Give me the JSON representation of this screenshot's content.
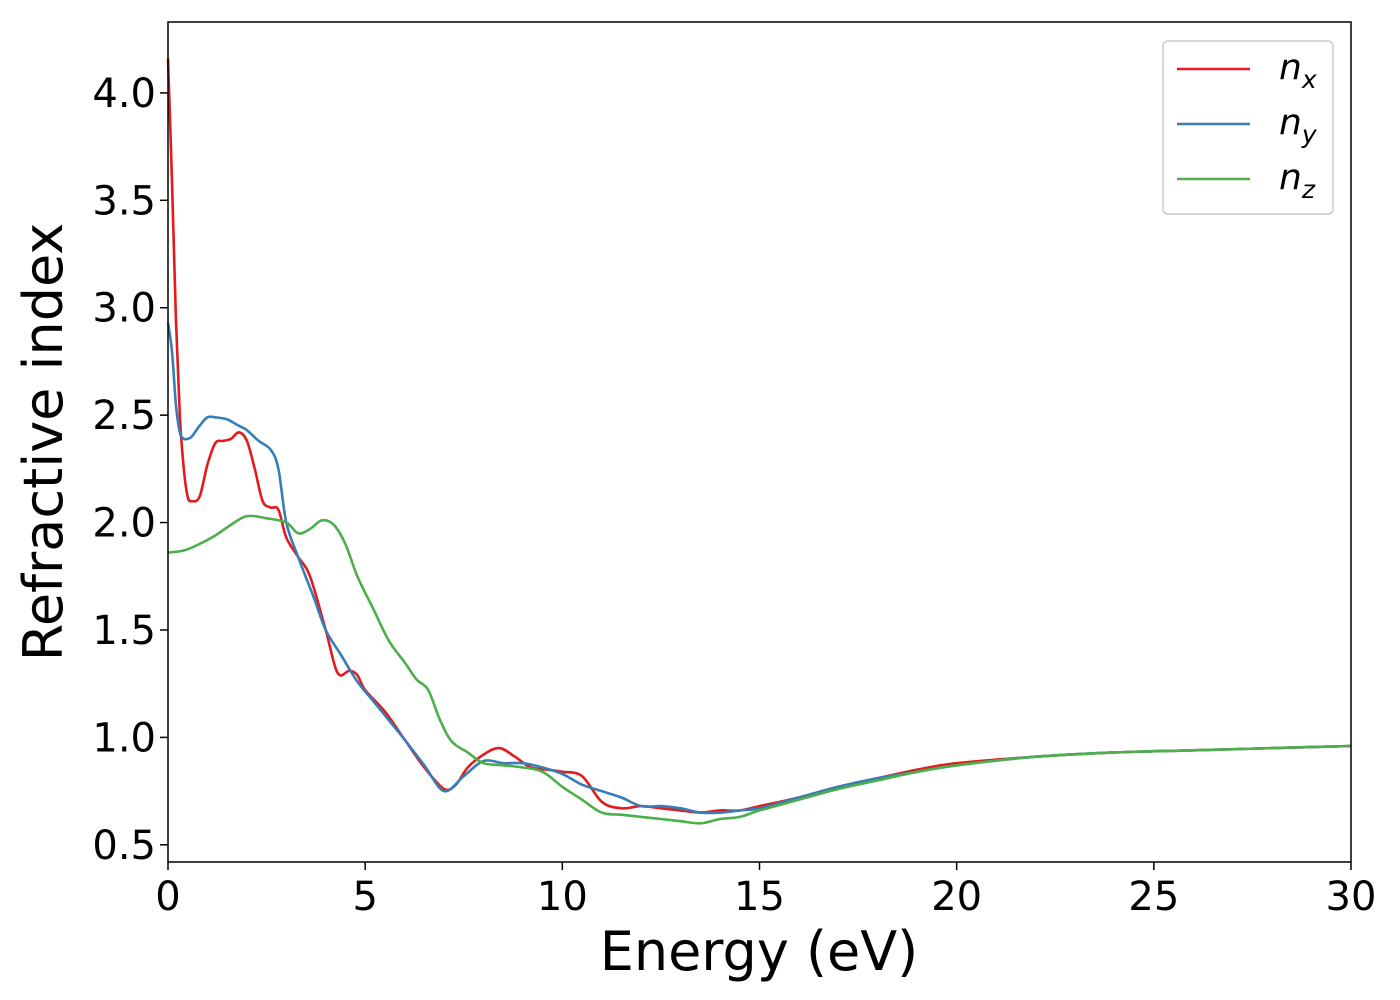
{
  "chart_data": {
    "type": "line",
    "title": "",
    "xlabel": "Energy (eV)",
    "ylabel": "Refractive index",
    "xlim": [
      0,
      30
    ],
    "ylim": [
      0.42,
      4.33
    ],
    "xticks": [
      0,
      5,
      10,
      15,
      20,
      25,
      30
    ],
    "xtick_labels": [
      "0",
      "5",
      "10",
      "15",
      "20",
      "25",
      "30"
    ],
    "yticks": [
      0.5,
      1.0,
      1.5,
      2.0,
      2.5,
      3.0,
      3.5,
      4.0
    ],
    "ytick_labels": [
      "0.5",
      "1.0",
      "1.5",
      "2.0",
      "2.5",
      "3.0",
      "3.5",
      "4.0"
    ],
    "grid": false,
    "legend_position": "top-right",
    "series": [
      {
        "name": "n_x",
        "label_main": "n",
        "label_sub": "x",
        "color": "#e41a1c",
        "x": [
          0,
          0.1,
          0.2,
          0.3,
          0.4,
          0.5,
          0.6,
          0.8,
          1.0,
          1.2,
          1.4,
          1.6,
          1.8,
          2.0,
          2.2,
          2.4,
          2.6,
          2.8,
          3.0,
          3.3,
          3.6,
          4.0,
          4.3,
          4.6,
          4.8,
          5.0,
          5.5,
          6.0,
          6.5,
          7.0,
          7.3,
          7.6,
          8.0,
          8.4,
          8.8,
          9.2,
          9.6,
          10.0,
          10.5,
          11.0,
          11.5,
          12.0,
          12.5,
          13.0,
          13.5,
          14.0,
          14.5,
          15.0,
          16.0,
          17.0,
          18.0,
          19.0,
          20.0,
          22.0,
          24.0,
          26.0,
          28.0,
          30.0
        ],
        "y": [
          4.16,
          3.6,
          2.95,
          2.5,
          2.25,
          2.12,
          2.1,
          2.12,
          2.27,
          2.37,
          2.38,
          2.39,
          2.42,
          2.38,
          2.25,
          2.1,
          2.07,
          2.06,
          1.93,
          1.84,
          1.75,
          1.5,
          1.3,
          1.31,
          1.29,
          1.22,
          1.12,
          0.99,
          0.86,
          0.76,
          0.78,
          0.86,
          0.92,
          0.95,
          0.91,
          0.86,
          0.85,
          0.84,
          0.82,
          0.7,
          0.67,
          0.68,
          0.67,
          0.66,
          0.65,
          0.66,
          0.66,
          0.68,
          0.72,
          0.77,
          0.81,
          0.85,
          0.88,
          0.91,
          0.93,
          0.94,
          0.95,
          0.96
        ]
      },
      {
        "name": "n_y",
        "label_main": "n",
        "label_sub": "y",
        "color": "#377eb8",
        "x": [
          0,
          0.1,
          0.2,
          0.3,
          0.4,
          0.5,
          0.6,
          0.8,
          1.0,
          1.2,
          1.5,
          1.8,
          2.0,
          2.3,
          2.6,
          2.8,
          3.0,
          3.3,
          3.7,
          4.0,
          4.4,
          4.8,
          5.2,
          5.6,
          6.0,
          6.5,
          7.0,
          7.5,
          8.0,
          8.5,
          9.0,
          9.5,
          10.0,
          10.5,
          11.0,
          11.5,
          12.0,
          12.5,
          13.0,
          13.5,
          14.0,
          14.5,
          15.0,
          16.0,
          17.0,
          18.0,
          19.0,
          20.0,
          22.0,
          24.0,
          26.0,
          28.0,
          30.0
        ],
        "y": [
          2.93,
          2.8,
          2.55,
          2.42,
          2.39,
          2.39,
          2.4,
          2.45,
          2.49,
          2.49,
          2.48,
          2.45,
          2.43,
          2.38,
          2.34,
          2.25,
          2.0,
          1.84,
          1.65,
          1.5,
          1.38,
          1.26,
          1.17,
          1.08,
          0.99,
          0.87,
          0.75,
          0.82,
          0.89,
          0.88,
          0.88,
          0.86,
          0.83,
          0.78,
          0.75,
          0.72,
          0.68,
          0.68,
          0.67,
          0.65,
          0.65,
          0.66,
          0.67,
          0.72,
          0.77,
          0.81,
          0.84,
          0.87,
          0.91,
          0.93,
          0.94,
          0.95,
          0.96
        ]
      },
      {
        "name": "n_z",
        "label_main": "n",
        "label_sub": "z",
        "color": "#4daf4a",
        "x": [
          0,
          0.4,
          0.8,
          1.2,
          1.6,
          2.0,
          2.5,
          3.0,
          3.3,
          3.6,
          3.9,
          4.2,
          4.5,
          4.8,
          5.2,
          5.6,
          6.0,
          6.3,
          6.6,
          6.9,
          7.2,
          7.6,
          8.0,
          8.5,
          9.0,
          9.5,
          10.0,
          10.5,
          11.0,
          11.5,
          12.0,
          12.5,
          13.0,
          13.5,
          14.0,
          14.5,
          15.0,
          16.0,
          17.0,
          18.0,
          19.0,
          20.0,
          22.0,
          24.0,
          26.0,
          28.0,
          30.0
        ],
        "y": [
          1.86,
          1.87,
          1.9,
          1.94,
          1.99,
          2.03,
          2.02,
          2.0,
          1.95,
          1.97,
          2.01,
          1.99,
          1.9,
          1.75,
          1.6,
          1.45,
          1.35,
          1.27,
          1.22,
          1.08,
          0.98,
          0.93,
          0.88,
          0.87,
          0.86,
          0.84,
          0.77,
          0.71,
          0.65,
          0.64,
          0.63,
          0.62,
          0.61,
          0.6,
          0.62,
          0.63,
          0.66,
          0.71,
          0.76,
          0.8,
          0.84,
          0.87,
          0.91,
          0.93,
          0.94,
          0.95,
          0.96
        ]
      }
    ]
  }
}
